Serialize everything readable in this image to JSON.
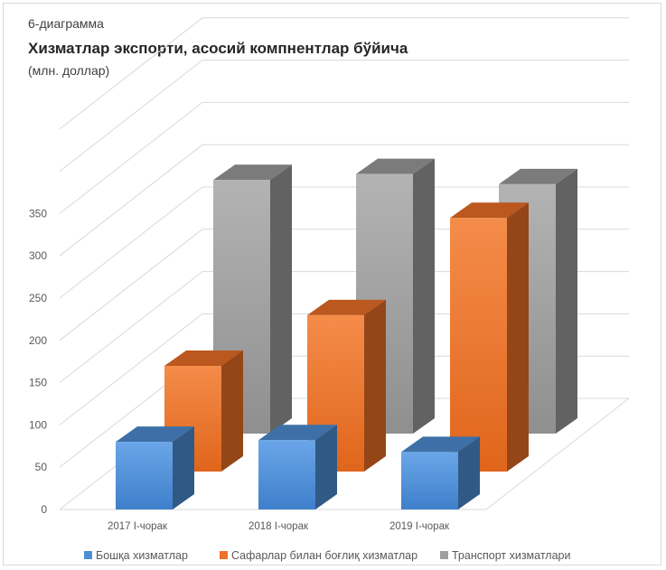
{
  "caption": {
    "label": "6-диаграмма",
    "title": "Хизматлар экспорти, асосий компнентлар бўйича",
    "unit": "(млн. доллар)"
  },
  "chart_data": {
    "type": "bar",
    "subtype": "3d-column",
    "categories": [
      "2017 I-чорак",
      "2018 I-чорак",
      "2019 I-чорак"
    ],
    "series": [
      {
        "name": "Бошқа хизматлар",
        "color": "#4f8fd6",
        "values": [
          80,
          82,
          68
        ]
      },
      {
        "name": "Сафарлар билан боғлиқ хизматлар",
        "color": "#ee7128",
        "values": [
          125,
          185,
          300
        ]
      },
      {
        "name": "Транспорт хизматлари",
        "color": "#9e9e9e",
        "values": [
          300,
          307,
          295
        ]
      }
    ],
    "y_ticks": [
      0,
      50,
      100,
      150,
      200,
      250,
      300,
      350
    ],
    "ylim": [
      0,
      350
    ],
    "grid": true,
    "legend_position": "bottom"
  }
}
